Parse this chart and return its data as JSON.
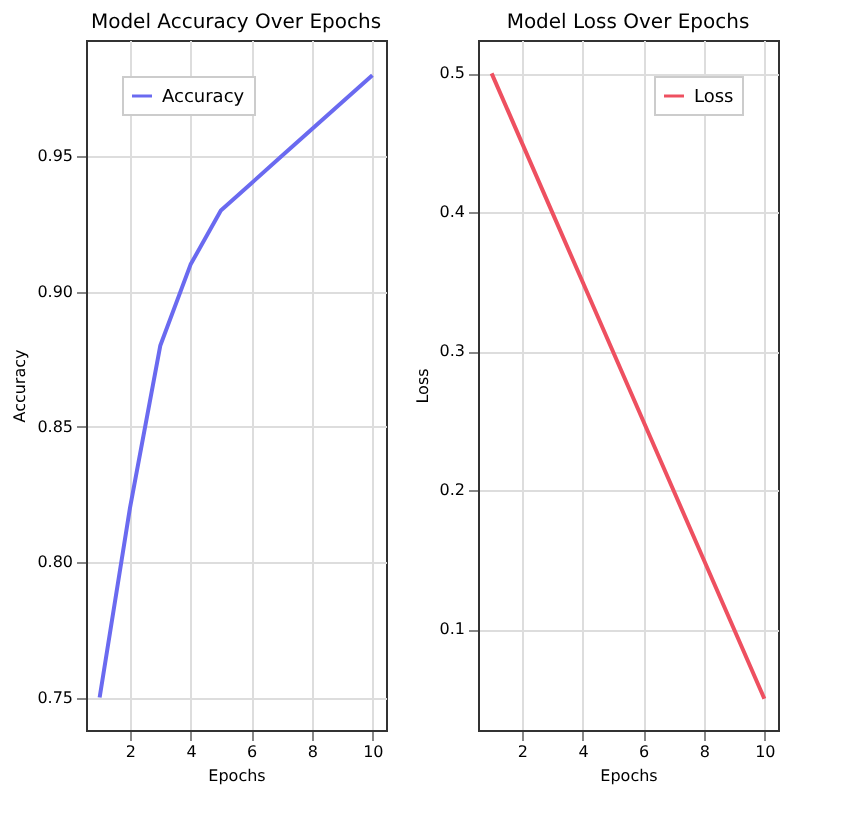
{
  "chart_data": [
    {
      "type": "line",
      "title": "Model Accuracy Over Epochs",
      "xlabel": "Epochs",
      "ylabel": "Accuracy",
      "x": [
        1,
        2,
        3,
        4,
        5,
        6,
        7,
        8,
        9,
        10
      ],
      "series": [
        {
          "name": "Accuracy",
          "color": "#6a6af0",
          "values": [
            0.75,
            0.82,
            0.88,
            0.91,
            0.93,
            0.94,
            0.95,
            0.96,
            0.97,
            0.98
          ]
        }
      ],
      "xlim": [
        0.55,
        10.45
      ],
      "xticks": [
        2,
        4,
        6,
        8,
        10
      ],
      "ylim": [
        0.738,
        0.993
      ],
      "yticks": [
        0.75,
        {
          "value": 0.8,
          "label": "0.80"
        },
        0.85,
        {
          "value": 0.9,
          "label": "0.90"
        },
        0.95
      ],
      "grid": true,
      "legend": "top left",
      "marker": "none",
      "line_style": "solid"
    },
    {
      "type": "line",
      "title": "Model Loss Over Epochs",
      "xlabel": "Epochs",
      "ylabel": "Loss",
      "x": [
        1,
        2,
        3,
        4,
        5,
        6,
        7,
        8,
        9,
        10
      ],
      "series": [
        {
          "name": "Loss",
          "color": "#ee5060",
          "values": [
            0.5,
            0.45,
            0.4,
            0.35,
            0.3,
            0.25,
            0.2,
            0.15,
            0.1,
            0.05
          ]
        }
      ],
      "xlim": [
        0.55,
        10.45
      ],
      "xticks": [
        2,
        4,
        6,
        8,
        10
      ],
      "ylim": [
        0.0275,
        0.524
      ],
      "yticks": [
        0.1,
        0.2,
        0.3,
        0.4,
        0.5
      ],
      "grid": true,
      "legend": "top right",
      "marker": "none",
      "line_style": "solid"
    }
  ]
}
